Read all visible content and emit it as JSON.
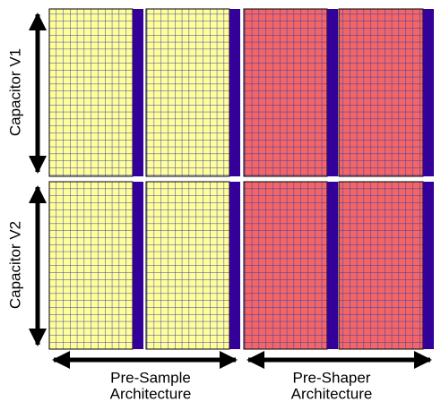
{
  "rows": [
    "Capacitor V1",
    "Capacitor V2"
  ],
  "columns": [
    {
      "line1": "Pre-Sample",
      "line2": "Architecture"
    },
    {
      "line1": "Pre-Shaper",
      "line2": "Architecture"
    }
  ]
}
